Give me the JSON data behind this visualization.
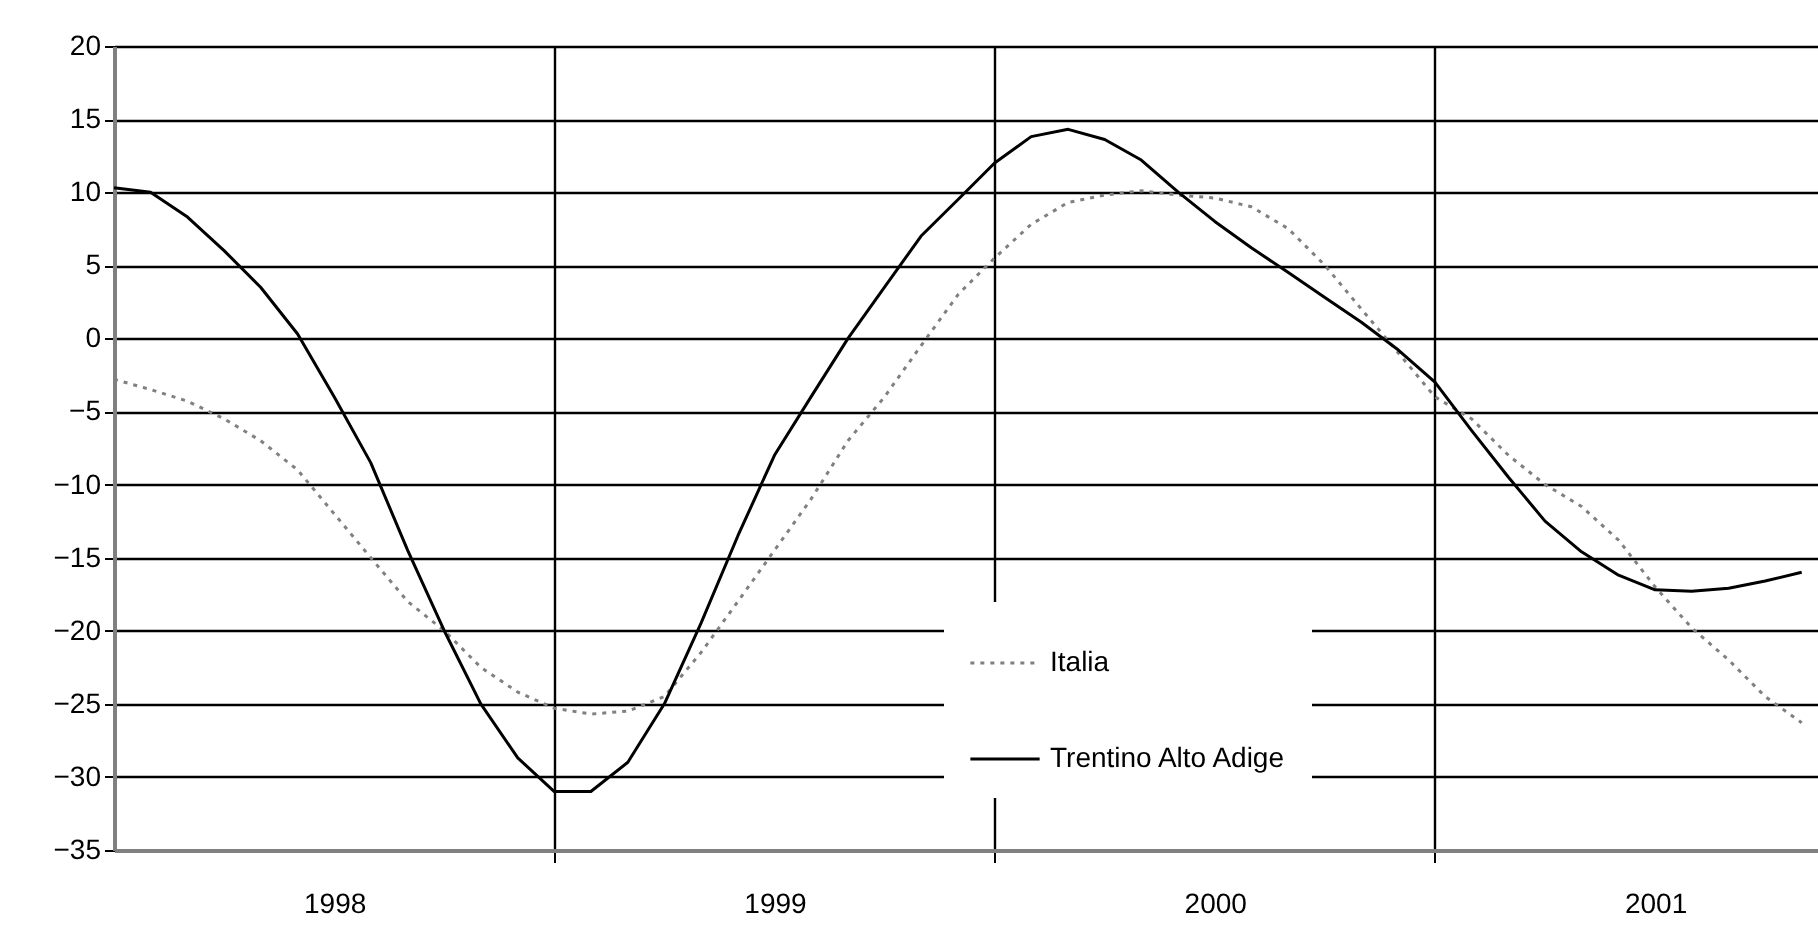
{
  "chart_data": {
    "type": "line",
    "x": [
      1998.0,
      1998.083,
      1998.167,
      1998.25,
      1998.333,
      1998.417,
      1998.5,
      1998.583,
      1998.667,
      1998.75,
      1998.833,
      1998.917,
      1999.0,
      1999.083,
      1999.167,
      1999.25,
      1999.333,
      1999.417,
      1999.5,
      1999.583,
      1999.667,
      1999.75,
      1999.833,
      1999.917,
      2000.0,
      2000.083,
      2000.167,
      2000.25,
      2000.333,
      2000.417,
      2000.5,
      2000.583,
      2000.667,
      2000.75,
      2000.833,
      2000.917,
      2001.0,
      2001.083,
      2001.167,
      2001.25,
      2001.333,
      2001.417,
      2001.5,
      2001.583,
      2001.667,
      2001.75,
      2001.833
    ],
    "series": [
      {
        "name": "Italia",
        "color": "#808080",
        "line_style": "dotted",
        "values": [
          -2.8,
          -3.5,
          -4.3,
          -5.5,
          -7,
          -9,
          -12,
          -15,
          -18,
          -20,
          -22.5,
          -24.2,
          -25.3,
          -25.7,
          -25.5,
          -24.5,
          -21.5,
          -18,
          -14.5,
          -11,
          -7,
          -4,
          -0.5,
          3,
          5.5,
          7.8,
          9.3,
          9.8,
          10.1,
          9.8,
          9.6,
          9,
          7.5,
          5,
          2,
          -1,
          -4,
          -5.5,
          -8,
          -10,
          -11.5,
          -13.8,
          -17,
          -19.8,
          -22,
          -24.5,
          -26.3
        ]
      },
      {
        "name": "Trentino Alto Adige",
        "color": "#000000",
        "line_style": "solid",
        "values": [
          10.3,
          10,
          8.3,
          6,
          3.5,
          0.3,
          -4,
          -8.5,
          -14.5,
          -20,
          -25,
          -28.7,
          -31,
          -31,
          -29,
          -25,
          -19.5,
          -13.5,
          -8,
          -4,
          0,
          3.5,
          7,
          9.5,
          12,
          13.8,
          14.3,
          13.6,
          12.2,
          10,
          8,
          6.2,
          4.5,
          2.8,
          1.1,
          -0.8,
          -3,
          -6.3,
          -9.5,
          -12.5,
          -14.6,
          -16.2,
          -17.2,
          -17.3,
          -17.1,
          -16.6,
          -16
        ]
      }
    ],
    "xlim": [
      1998,
      2001.87
    ],
    "xticks": [
      {
        "value": 1998.5,
        "label": "1998"
      },
      {
        "value": 1999,
        "label": null
      },
      {
        "value": 1999.5,
        "label": "1999"
      },
      {
        "value": 2000,
        "label": null
      },
      {
        "value": 2000.5,
        "label": "2000"
      },
      {
        "value": 2001,
        "label": null
      },
      {
        "value": 2001.5,
        "label": "2001"
      }
    ],
    "ylim": [
      -35,
      20
    ],
    "yticks": [
      -35,
      -30,
      -25,
      -20,
      -15,
      -10,
      -5,
      0,
      5,
      10,
      15,
      20
    ],
    "grid": true,
    "legend": "bottom right",
    "marker": "none"
  }
}
